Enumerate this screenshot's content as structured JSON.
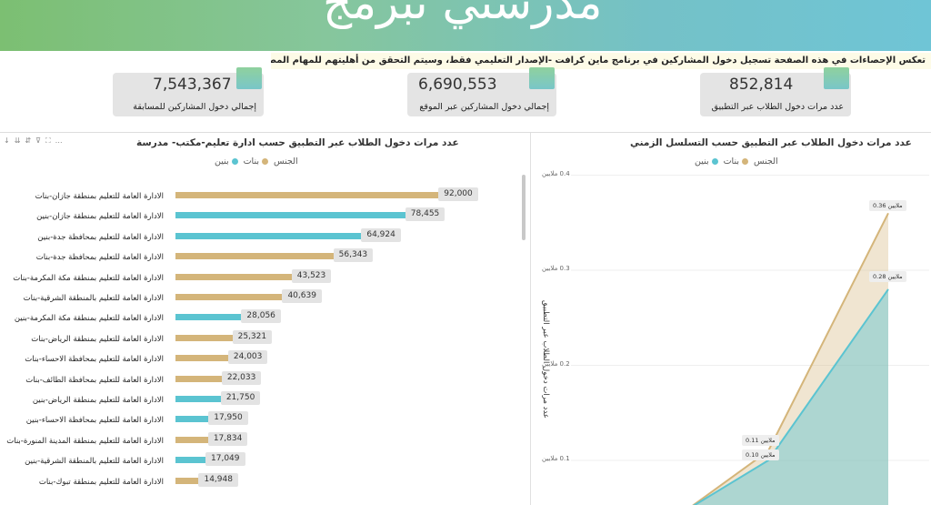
{
  "banner": {
    "title": "مدرستي تبرمج"
  },
  "notice": "تعكس الإحصاءات في هذه الصفحة تسجيل دخول المشاركين في برنامج ماين كرافت -الإصدار التعليمي فقط، وسيتم التحقق من أهليتهم للمهام المطلوبة لمسابقة مدرستي تبرمج (المرحلة الأولى) لاحقاً",
  "kpis": [
    {
      "value": "7,543,367",
      "label": "إجمالي دخول المشاركين للمسابقة"
    },
    {
      "value": "6,690,553",
      "label": "إجمالي دخول المشاركين عبر الموقع"
    },
    {
      "value": "852,814",
      "label": "عدد مرات دخول الطلاب عبر التطبيق"
    }
  ],
  "left_panel": {
    "title": "عدد مرات دخول الطلاب عبر التطبيق حسب ادارة تعليم-مكتب- مدرسة",
    "legend_title": "الجنس",
    "legend": [
      {
        "label": "بنات",
        "color": "#d4b57a"
      },
      {
        "label": "بنين",
        "color": "#5bc4d1"
      }
    ],
    "toolbar_icons": [
      "arrow-down-icon",
      "double-arrow-down-icon",
      "hierarchy-icon",
      "filter-icon",
      "focus-icon",
      "more-icon"
    ]
  },
  "right_panel": {
    "title": "عدد مرات دخول الطلاب عبر التطبيق حسب التسلسل الزمني",
    "legend_title": "الجنس",
    "legend": [
      {
        "label": "بنات",
        "color": "#d4b57a"
      },
      {
        "label": "بنين",
        "color": "#5bc4d1"
      }
    ],
    "y_axis_label": "عدد مرات دخول الطلاب عبر التطبيق",
    "y_ticks": [
      "0.4 ملايين",
      "0.3 ملايين",
      "0.2 ملايين",
      "0.1 ملايين"
    ],
    "point_labels": [
      "0.36 ملايين",
      "0.28 ملايين",
      "0.11 ملايين",
      "0.10 ملايين"
    ]
  },
  "chart_data": [
    {
      "type": "bar",
      "title": "عدد مرات دخول الطلاب عبر التطبيق حسب ادارة تعليم-مكتب- مدرسة",
      "legend_title": "الجنس",
      "categories": [
        "الادارة العامة للتعليم بمنطقة جازان-بنات",
        "الادارة العامة للتعليم بمنطقة جازان-بنين",
        "الادارة العامة للتعليم بمحافظة جدة-بنين",
        "الادارة العامة للتعليم بمحافظة جدة-بنات",
        "الادارة العامة للتعليم بمنطقة مكة المكرمة-بنات",
        "الادارة العامة للتعليم بالمنطقة الشرقية-بنات",
        "الادارة العامة للتعليم بمنطقة مكة المكرمة-بنين",
        "الادارة العامة للتعليم بمنطقة الرياض-بنات",
        "الادارة العامة للتعليم بمحافظة الاحساء-بنات",
        "الادارة العامة للتعليم بمحافظة الطائف-بنات",
        "الادارة العامة للتعليم بمنطقة الرياض-بنين",
        "الادارة العامة للتعليم بمحافظة الاحساء-بنين",
        "الادارة العامة للتعليم بمنطقة المدينة المنورة-بنات",
        "الادارة العامة للتعليم بالمنطقة الشرقية-بنين",
        "الادارة العامة للتعليم بمنطقة تبوك-بنات"
      ],
      "values": [
        92000,
        78455,
        64924,
        56343,
        43523,
        40639,
        28056,
        25321,
        24003,
        22033,
        21750,
        17950,
        17834,
        17049,
        14948
      ],
      "value_labels": [
        "92,000",
        "78,455",
        "64,924",
        "56,343",
        "43,523",
        "40,639",
        "28,056",
        "25,321",
        "24,003",
        "22,033",
        "21,750",
        "17,950",
        "17,834",
        "17,049",
        "14,948"
      ],
      "gender": [
        "بنات",
        "بنين",
        "بنين",
        "بنات",
        "بنات",
        "بنات",
        "بنين",
        "بنات",
        "بنات",
        "بنات",
        "بنين",
        "بنين",
        "بنات",
        "بنين",
        "بنات"
      ],
      "colors": {
        "بنات": "#d4b57a",
        "بنين": "#5bc4d1"
      },
      "xlim": [
        0,
        95000
      ]
    },
    {
      "type": "area",
      "title": "عدد مرات دخول الطلاب عبر التطبيق حسب التسلسل الزمني",
      "ylabel": "عدد مرات دخول الطلاب عبر التطبيق",
      "legend_title": "الجنس",
      "ylim": [
        0,
        0.4
      ],
      "y_unit": "ملايين",
      "series": [
        {
          "name": "بنات",
          "color": "#d4b57a",
          "values": [
            0.0,
            0.11,
            0.36
          ]
        },
        {
          "name": "بنين",
          "color": "#5bc4d1",
          "values": [
            0.0,
            0.1,
            0.28
          ]
        }
      ]
    }
  ]
}
